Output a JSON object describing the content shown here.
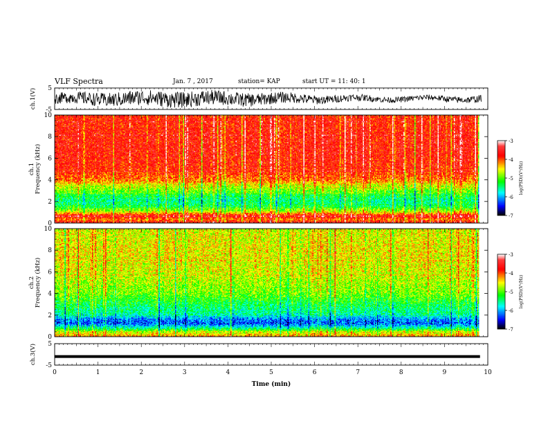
{
  "header": {
    "title": "VLF Spectra",
    "date": "Jan. 7 , 2017",
    "station": "station= KAP",
    "start": "start  UT =  11: 40: 1"
  },
  "chart_data": [
    {
      "type": "line",
      "panel": "ch1-waveform",
      "ylabel": "ch.1(V)",
      "yticks": [
        "5",
        "-5"
      ],
      "ylim": [
        -5,
        5
      ],
      "xlim": [
        0,
        10
      ],
      "series": [
        {
          "color": "#000000"
        }
      ]
    },
    {
      "type": "heatmap",
      "panel": "ch1-spectrogram",
      "ylabel": "ch.1\nFrequency (kHz)",
      "ylabel_lines": [
        "ch.1",
        "Frequency (kHz)"
      ],
      "yticks": [
        "0",
        "2",
        "4",
        "6",
        "8",
        "10"
      ],
      "ylim": [
        0,
        10
      ],
      "xlim": [
        0,
        9.8
      ],
      "colorbar": {
        "label": "log(PSD)(V²/Hz)",
        "ticks": [
          "-3",
          "-4",
          "-5",
          "-6",
          "-7"
        ],
        "range": [
          -7,
          -3
        ],
        "colors": [
          "#ffffff",
          "#ff0000",
          "#ffff00",
          "#00ff00",
          "#00ffff",
          "#0000ff",
          "#000000"
        ]
      },
      "profile": [
        {
          "f": 0.0,
          "v": -3.6
        },
        {
          "f": 0.3,
          "v": -4.2
        },
        {
          "f": 0.6,
          "v": -3.5
        },
        {
          "f": 1.0,
          "v": -4.6
        },
        {
          "f": 1.5,
          "v": -5.3
        },
        {
          "f": 2.0,
          "v": -5.5
        },
        {
          "f": 2.5,
          "v": -5.3
        },
        {
          "f": 3.0,
          "v": -4.9
        },
        {
          "f": 3.5,
          "v": -4.6
        },
        {
          "f": 4.0,
          "v": -4.1
        },
        {
          "f": 5.0,
          "v": -3.8
        },
        {
          "f": 7.0,
          "v": -3.7
        },
        {
          "f": 10.0,
          "v": -3.8
        }
      ]
    },
    {
      "type": "heatmap",
      "panel": "ch2-spectrogram",
      "ylabel": "ch.2\nFrequency (kHz)",
      "ylabel_lines": [
        "ch.2",
        "Frequency (kHz)"
      ],
      "yticks": [
        "0",
        "2",
        "4",
        "6",
        "8",
        "10"
      ],
      "ylim": [
        0,
        10
      ],
      "xlim": [
        0,
        9.8
      ],
      "colorbar": {
        "label": "log(PSD)(V²/Hz)",
        "ticks": [
          "-3",
          "-4",
          "-5",
          "-6",
          "-7"
        ],
        "range": [
          -7,
          -3
        ],
        "colors": [
          "#ffffff",
          "#ff0000",
          "#ffff00",
          "#00ff00",
          "#00ffff",
          "#0000ff",
          "#000000"
        ]
      },
      "profile": [
        {
          "f": 0.0,
          "v": -4.3
        },
        {
          "f": 0.4,
          "v": -4.6
        },
        {
          "f": 0.8,
          "v": -5.6
        },
        {
          "f": 1.2,
          "v": -6.3
        },
        {
          "f": 1.6,
          "v": -6.1
        },
        {
          "f": 2.0,
          "v": -5.6
        },
        {
          "f": 3.0,
          "v": -5.3
        },
        {
          "f": 4.0,
          "v": -4.9
        },
        {
          "f": 6.0,
          "v": -4.6
        },
        {
          "f": 8.0,
          "v": -4.5
        },
        {
          "f": 10.0,
          "v": -4.6
        }
      ]
    },
    {
      "type": "line",
      "panel": "ch3-waveform",
      "ylabel": "ch.3(V)",
      "yticks": [
        "5",
        "-5"
      ],
      "ylim": [
        -5,
        5
      ],
      "xlim": [
        0,
        10
      ],
      "series": [
        {
          "color": "#000000",
          "constant": -1.0
        }
      ]
    }
  ],
  "xaxis": {
    "label": "Time (min)",
    "ticks": [
      "0",
      "1",
      "2",
      "3",
      "4",
      "5",
      "6",
      "7",
      "8",
      "9",
      "10"
    ],
    "range": [
      0,
      10
    ]
  }
}
